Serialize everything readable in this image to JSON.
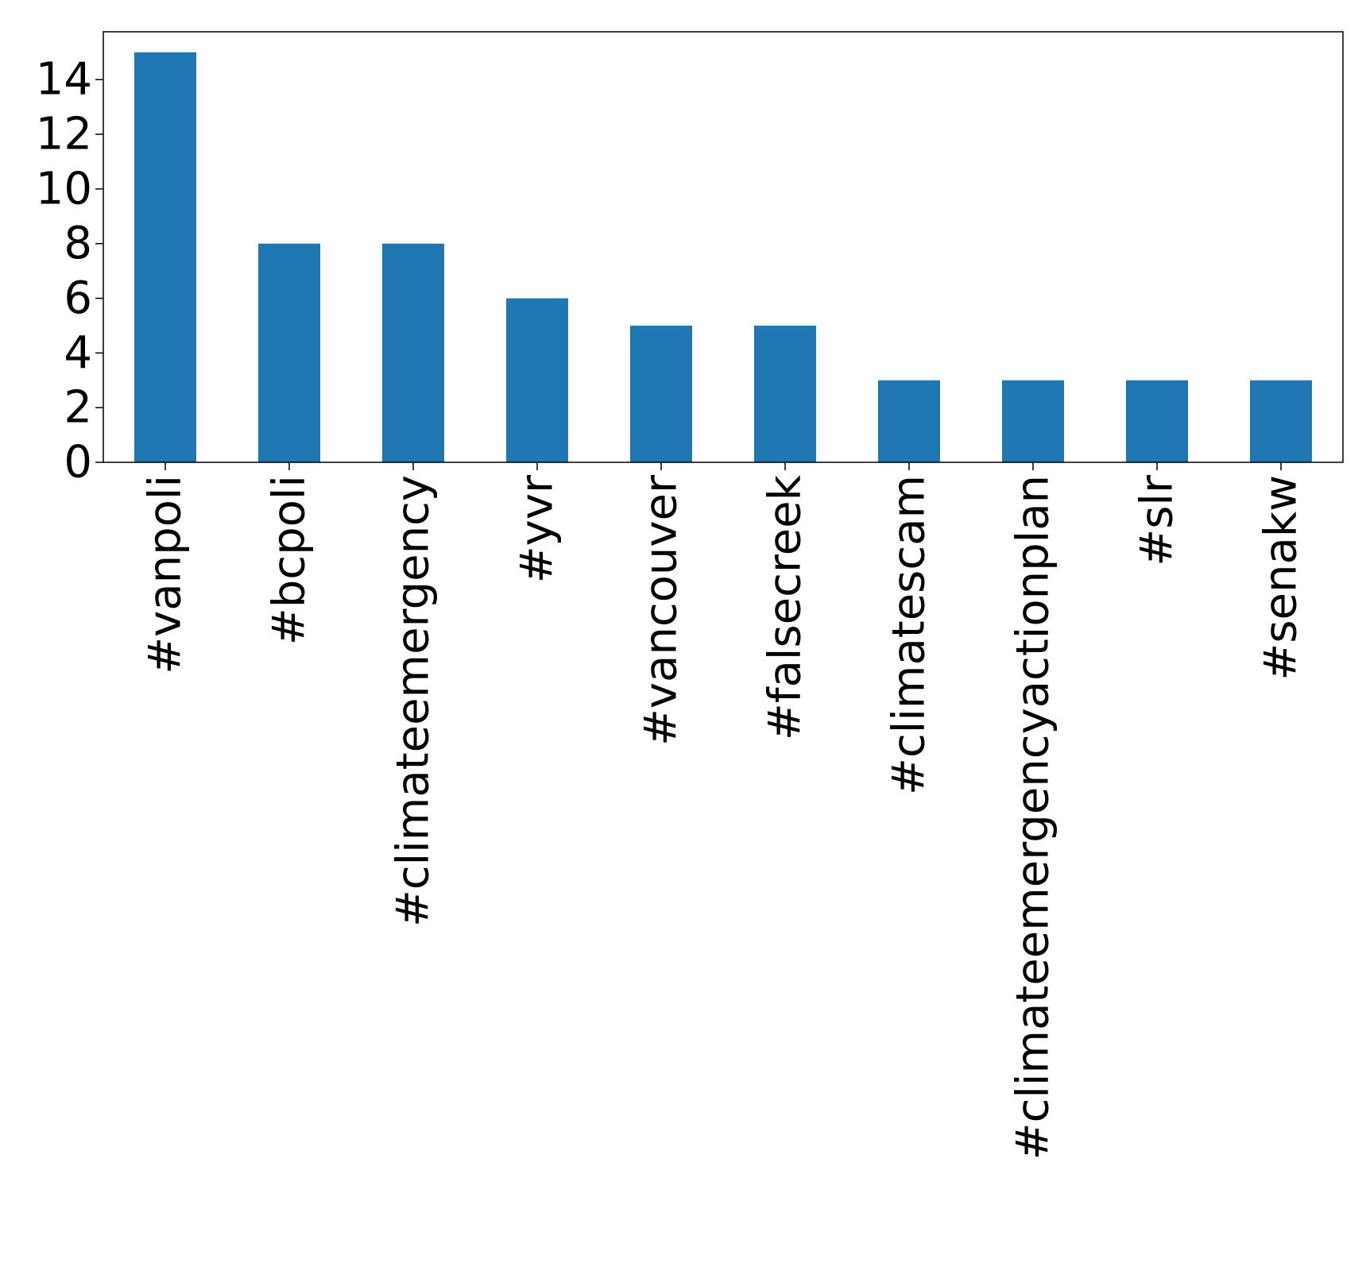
{
  "chart_data": {
    "type": "bar",
    "title": "",
    "xlabel": "",
    "ylabel": "",
    "categories": [
      "#vanpoli",
      "#bcpoli",
      "#climateemergency",
      "#yvr",
      "#vancouver",
      "#falsecreek",
      "#climatescam",
      "#climateemergencyactionplan",
      "#slr",
      "#senakw"
    ],
    "values": [
      15,
      8,
      8,
      6,
      5,
      5,
      3,
      3,
      3,
      3
    ],
    "ylim": [
      0,
      15.75
    ],
    "yticks": [
      0,
      2,
      4,
      6,
      8,
      10,
      12,
      14
    ],
    "ytick_labels": [
      "0",
      "2",
      "4",
      "6",
      "8",
      "10",
      "12",
      "14"
    ],
    "bar_color": "#1f77b4",
    "grid": false,
    "legend": "none"
  }
}
